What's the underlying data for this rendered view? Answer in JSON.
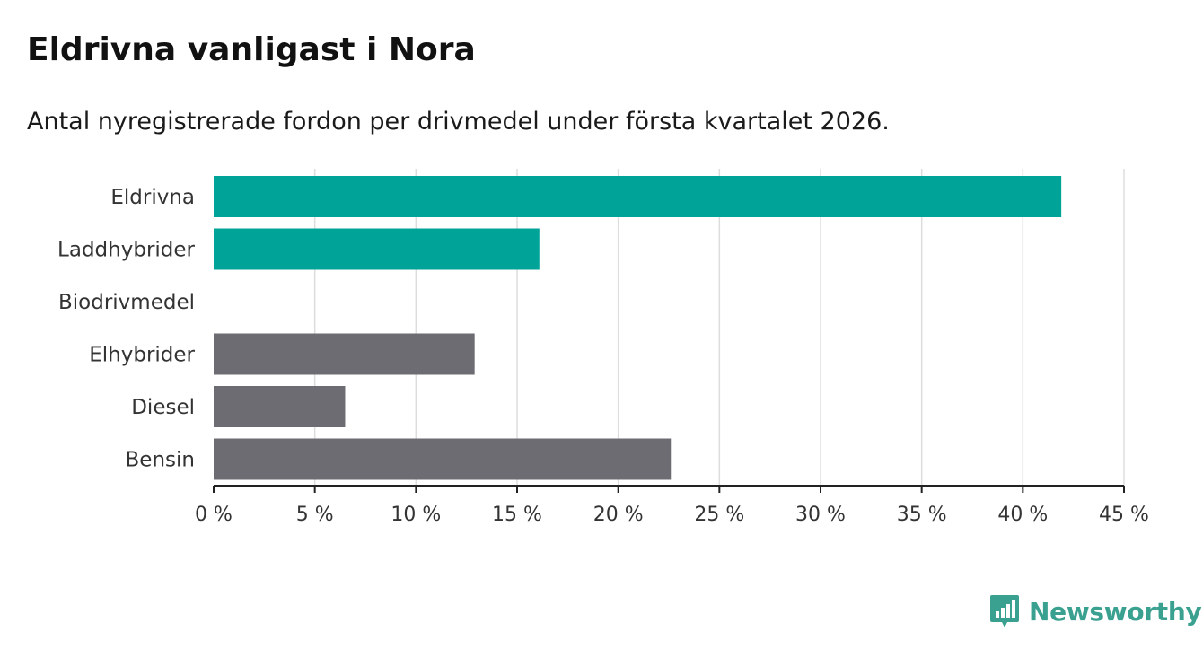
{
  "chart_data": {
    "type": "bar",
    "orientation": "horizontal",
    "title": "Eldrivna vanligast i Nora",
    "subtitle": "Antal nyregistrerade fordon per drivmedel under första kvartalet 2026.",
    "categories": [
      "Eldrivna",
      "Laddhybrider",
      "Biodrivmedel",
      "Elhybrider",
      "Diesel",
      "Bensin"
    ],
    "values": [
      41.9,
      16.1,
      0,
      12.9,
      6.5,
      22.6
    ],
    "bar_colors": [
      "#00a398",
      "#00a398",
      "#00a398",
      "#6d6c73",
      "#6d6c73",
      "#6d6c73"
    ],
    "xlim": [
      0,
      45
    ],
    "xticks": [
      0,
      5,
      10,
      15,
      20,
      25,
      30,
      35,
      40,
      45
    ],
    "xtick_labels": [
      "0 %",
      "5 %",
      "10 %",
      "15 %",
      "20 %",
      "25 %",
      "30 %",
      "35 %",
      "40 %",
      "45 %"
    ],
    "xlabel": "",
    "ylabel": "",
    "grid": true
  },
  "brand": {
    "name": "Newsworthy",
    "color": "#3aa08f",
    "icon": "bar-chart-icon"
  },
  "colors": {
    "grid": "#dddddd",
    "axis": "#222222"
  }
}
